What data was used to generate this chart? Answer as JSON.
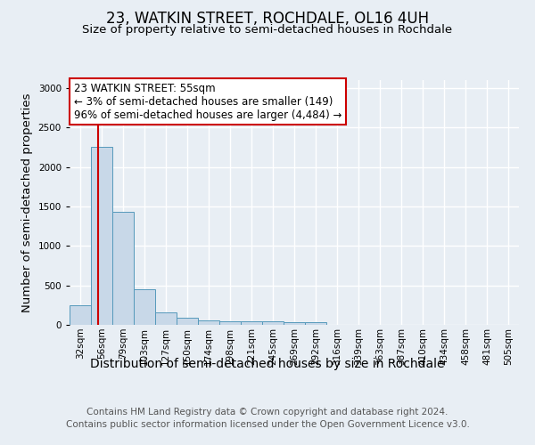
{
  "title": "23, WATKIN STREET, ROCHDALE, OL16 4UH",
  "subtitle": "Size of property relative to semi-detached houses in Rochdale",
  "xlabel": "Distribution of semi-detached houses by size in Rochdale",
  "ylabel": "Number of semi-detached properties",
  "footer_line1": "Contains HM Land Registry data © Crown copyright and database right 2024.",
  "footer_line2": "Contains public sector information licensed under the Open Government Licence v3.0.",
  "categories": [
    "32sqm",
    "56sqm",
    "79sqm",
    "103sqm",
    "127sqm",
    "150sqm",
    "174sqm",
    "198sqm",
    "221sqm",
    "245sqm",
    "269sqm",
    "292sqm",
    "316sqm",
    "339sqm",
    "363sqm",
    "387sqm",
    "410sqm",
    "434sqm",
    "458sqm",
    "481sqm",
    "505sqm"
  ],
  "values": [
    252,
    2250,
    1430,
    450,
    155,
    90,
    55,
    45,
    40,
    50,
    35,
    35,
    0,
    0,
    0,
    0,
    0,
    0,
    0,
    0,
    0
  ],
  "bar_color": "#c8d8e8",
  "bar_edge_color": "#5599bb",
  "property_line_color": "#cc0000",
  "annotation_title": "23 WATKIN STREET: 55sqm",
  "annotation_line1": "← 3% of semi-detached houses are smaller (149)",
  "annotation_line2": "96% of semi-detached houses are larger (4,484) →",
  "annotation_box_color": "#ffffff",
  "annotation_border_color": "#cc0000",
  "ylim": [
    0,
    3100
  ],
  "yticks": [
    0,
    500,
    1000,
    1500,
    2000,
    2500,
    3000
  ],
  "background_color": "#e8eef4",
  "plot_background": "#e8eef4",
  "grid_color": "#ffffff",
  "title_fontsize": 12,
  "subtitle_fontsize": 9.5,
  "axis_label_fontsize": 9.5,
  "tick_fontsize": 7.5,
  "annotation_fontsize": 8.5,
  "footer_fontsize": 7.5
}
